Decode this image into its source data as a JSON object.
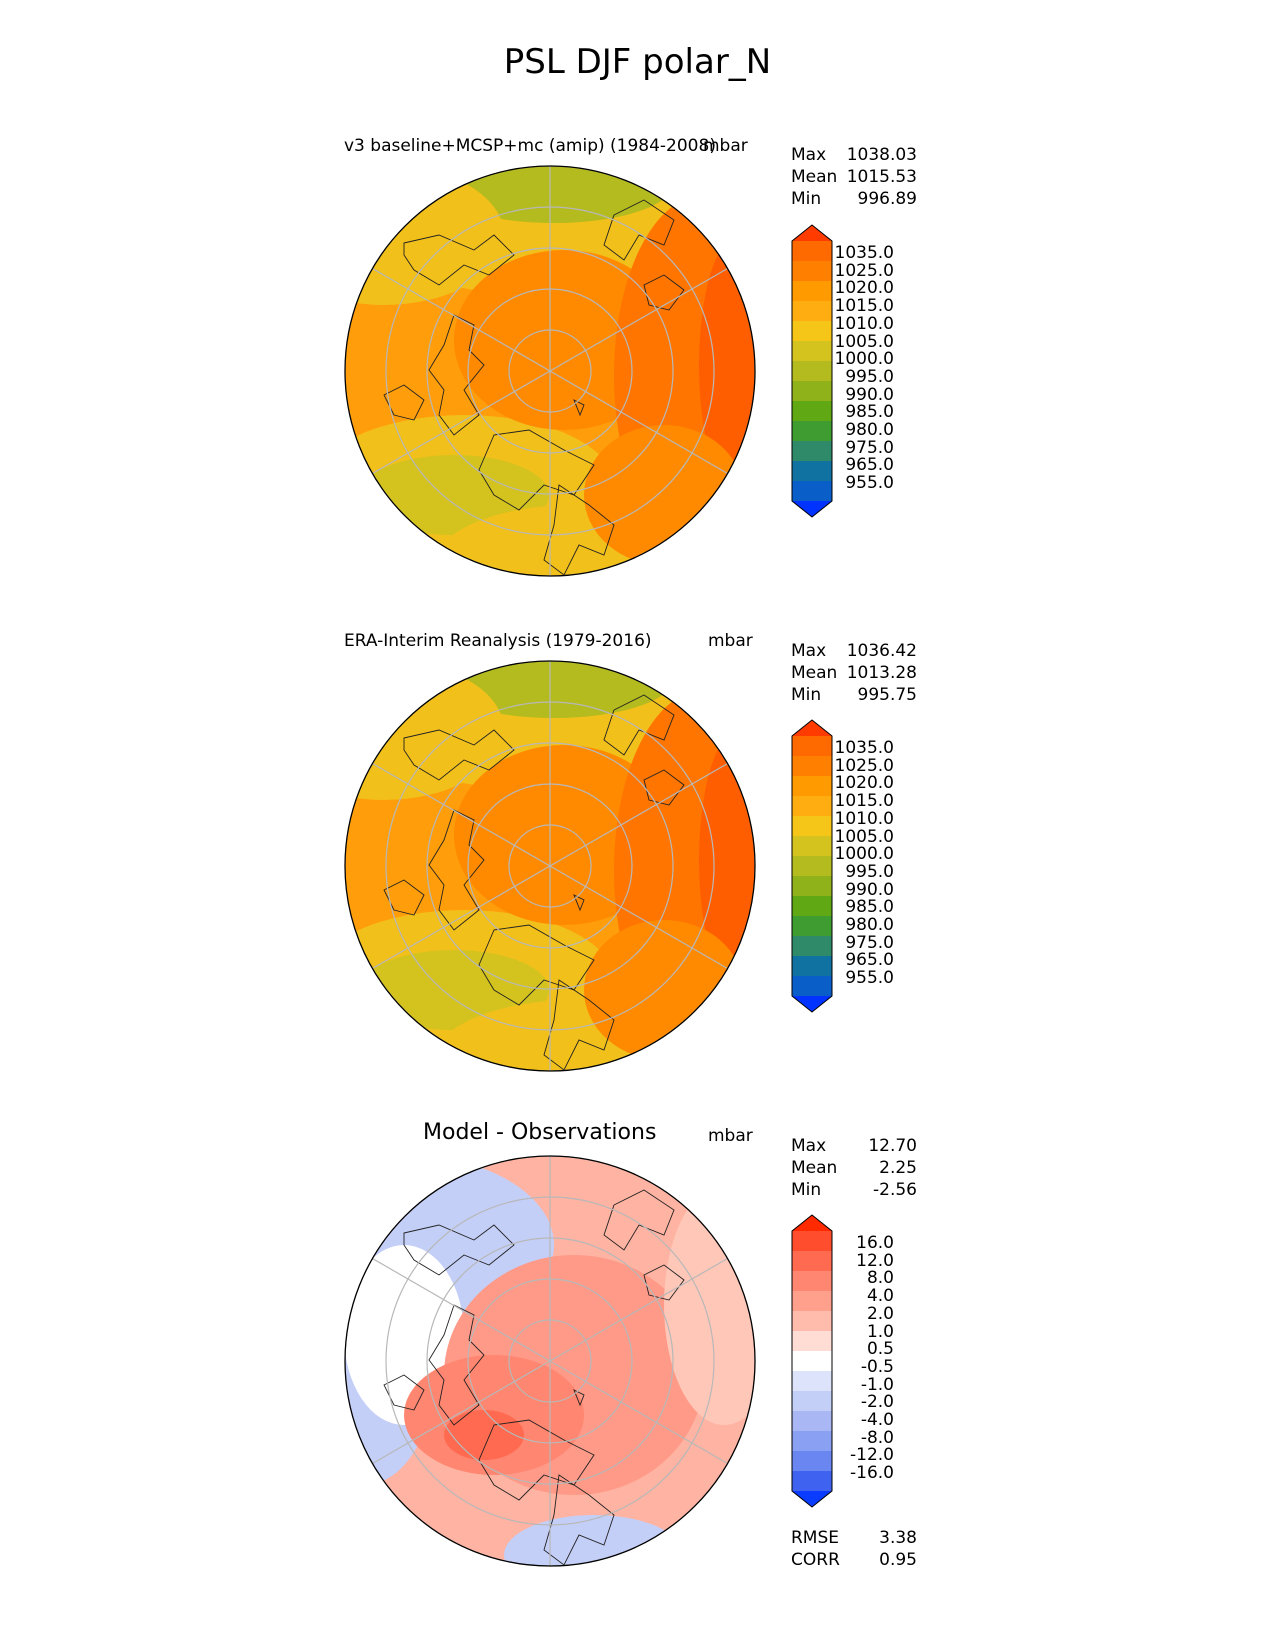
{
  "title": "PSL DJF polar_N",
  "panels": [
    {
      "id": "test",
      "title": "v3 baseline+MCSP+mc (amip) (1984-2008)",
      "units": "mbar",
      "stats": {
        "max_label": "Max",
        "max": "1038.03",
        "mean_label": "Mean",
        "mean": "1015.53",
        "min_label": "Min",
        "min": "996.89"
      },
      "colorbar_labels": [
        "1035.0",
        "1025.0",
        "1020.0",
        "1015.0",
        "1010.0",
        "1005.0",
        "1000.0",
        "995.0",
        "990.0",
        "985.0",
        "980.0",
        "975.0",
        "965.0",
        "955.0"
      ],
      "colorbar_colors": [
        "#ff3b00",
        "#ff6a00",
        "#ff8000",
        "#ff9a00",
        "#ffad10",
        "#f5c518",
        "#d4c31e",
        "#b4bb1e",
        "#8fb21a",
        "#60a814",
        "#3f9c30",
        "#2f8a6a",
        "#1072a0",
        "#0a5ec8",
        "#0033ff"
      ]
    },
    {
      "id": "reference",
      "title": "ERA-Interim Reanalysis (1979-2016)",
      "units": "mbar",
      "stats": {
        "max_label": "Max",
        "max": "1036.42",
        "mean_label": "Mean",
        "mean": "1013.28",
        "min_label": "Min",
        "min": "995.75"
      },
      "colorbar_labels": [
        "1035.0",
        "1025.0",
        "1020.0",
        "1015.0",
        "1010.0",
        "1005.0",
        "1000.0",
        "995.0",
        "990.0",
        "985.0",
        "980.0",
        "975.0",
        "965.0",
        "955.0"
      ],
      "colorbar_colors": [
        "#ff3b00",
        "#ff6a00",
        "#ff8000",
        "#ff9a00",
        "#ffad10",
        "#f5c518",
        "#d4c31e",
        "#b4bb1e",
        "#8fb21a",
        "#60a814",
        "#3f9c30",
        "#2f8a6a",
        "#1072a0",
        "#0a5ec8",
        "#0033ff"
      ]
    },
    {
      "id": "difference",
      "title": "Model - Observations",
      "units": "mbar",
      "stats": {
        "max_label": "Max",
        "max": "12.70",
        "mean_label": "Mean",
        "mean": "2.25",
        "min_label": "Min",
        "min": "-2.56"
      },
      "colorbar_labels": [
        "16.0",
        "12.0",
        "8.0",
        "4.0",
        "2.0",
        "1.0",
        "0.5",
        "-0.5",
        "-1.0",
        "-2.0",
        "-4.0",
        "-8.0",
        "-12.0",
        "-16.0"
      ],
      "colorbar_colors": [
        "#ff2a00",
        "#ff4d2e",
        "#ff6a50",
        "#ff8670",
        "#ffa08c",
        "#ffbcac",
        "#ffdcd4",
        "#ffffff",
        "#dde3fa",
        "#c4cff8",
        "#a9b8f5",
        "#8aa0f2",
        "#6a86f0",
        "#3f63f0",
        "#0a3cff"
      ],
      "footer": {
        "rmse_label": "RMSE",
        "rmse": "3.38",
        "corr_label": "CORR",
        "corr": "0.95"
      }
    }
  ]
}
